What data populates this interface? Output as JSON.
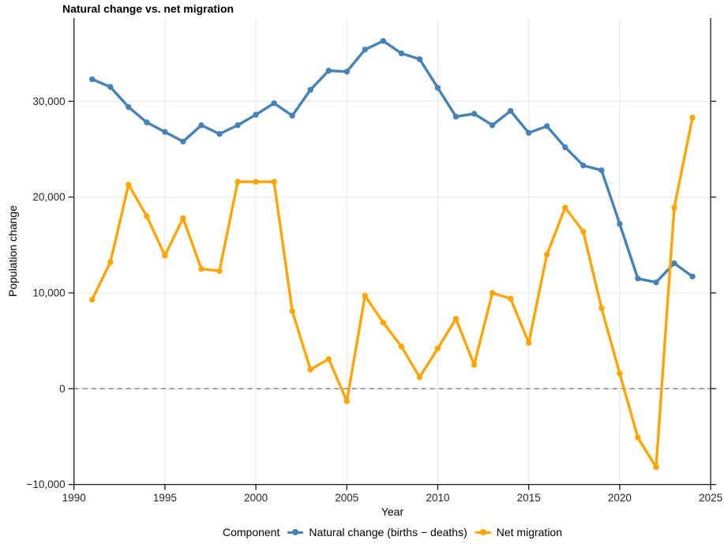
{
  "chart_data": {
    "type": "line",
    "title": "Natural change vs. net migration",
    "xlabel": "Year",
    "ylabel": "Population change",
    "legend_title": "Component",
    "legend_position": "bottom",
    "grid": true,
    "background": "#ffffff",
    "gridline_color": "#e8e8e8",
    "axis_color": "#1a1a1a",
    "zero_line": {
      "value": 0,
      "style": "dashed",
      "color": "#7f7f7f"
    },
    "xlim": [
      1990,
      2025
    ],
    "ylim": [
      -10000,
      38700
    ],
    "x_axis": {
      "tick_values": [
        1990,
        1995,
        2000,
        2005,
        2010,
        2015,
        2020,
        2025
      ],
      "tick_labels": [
        "1990",
        "1995",
        "2000",
        "2005",
        "2010",
        "2015",
        "2020",
        "2025"
      ]
    },
    "y_axis": {
      "tick_values": [
        -10000,
        0,
        10000,
        20000,
        30000
      ],
      "tick_labels": [
        "−10,000",
        "0",
        "10,000",
        "20,000",
        "30,000"
      ]
    },
    "x": [
      1991,
      1992,
      1993,
      1994,
      1995,
      1996,
      1997,
      1998,
      1999,
      2000,
      2001,
      2002,
      2003,
      2004,
      2005,
      2006,
      2007,
      2008,
      2009,
      2010,
      2011,
      2012,
      2013,
      2014,
      2015,
      2016,
      2017,
      2018,
      2019,
      2020,
      2021,
      2022,
      2023,
      2024
    ],
    "series": [
      {
        "name": "Natural change (births − deaths)",
        "color": "#4682B4",
        "values": [
          32300,
          31500,
          29400,
          27800,
          26800,
          25800,
          27500,
          26600,
          27500,
          28600,
          29800,
          28500,
          31200,
          33200,
          33100,
          35400,
          36300,
          35000,
          34400,
          31400,
          28400,
          28700,
          27500,
          29000,
          26700,
          27400,
          25200,
          23300,
          22800,
          17200,
          11500,
          11100,
          13100,
          11700
        ]
      },
      {
        "name": "Net migration",
        "color": "#FFA500",
        "values": [
          9300,
          13200,
          21300,
          18000,
          13900,
          17800,
          12500,
          12300,
          21600,
          21600,
          21600,
          8100,
          2000,
          3100,
          -1300,
          9700,
          6900,
          4400,
          1200,
          4200,
          7300,
          2500,
          10000,
          9400,
          4800,
          14000,
          18900,
          16400,
          8400,
          1600,
          -5100,
          -8200,
          18900,
          28300
        ]
      }
    ]
  }
}
